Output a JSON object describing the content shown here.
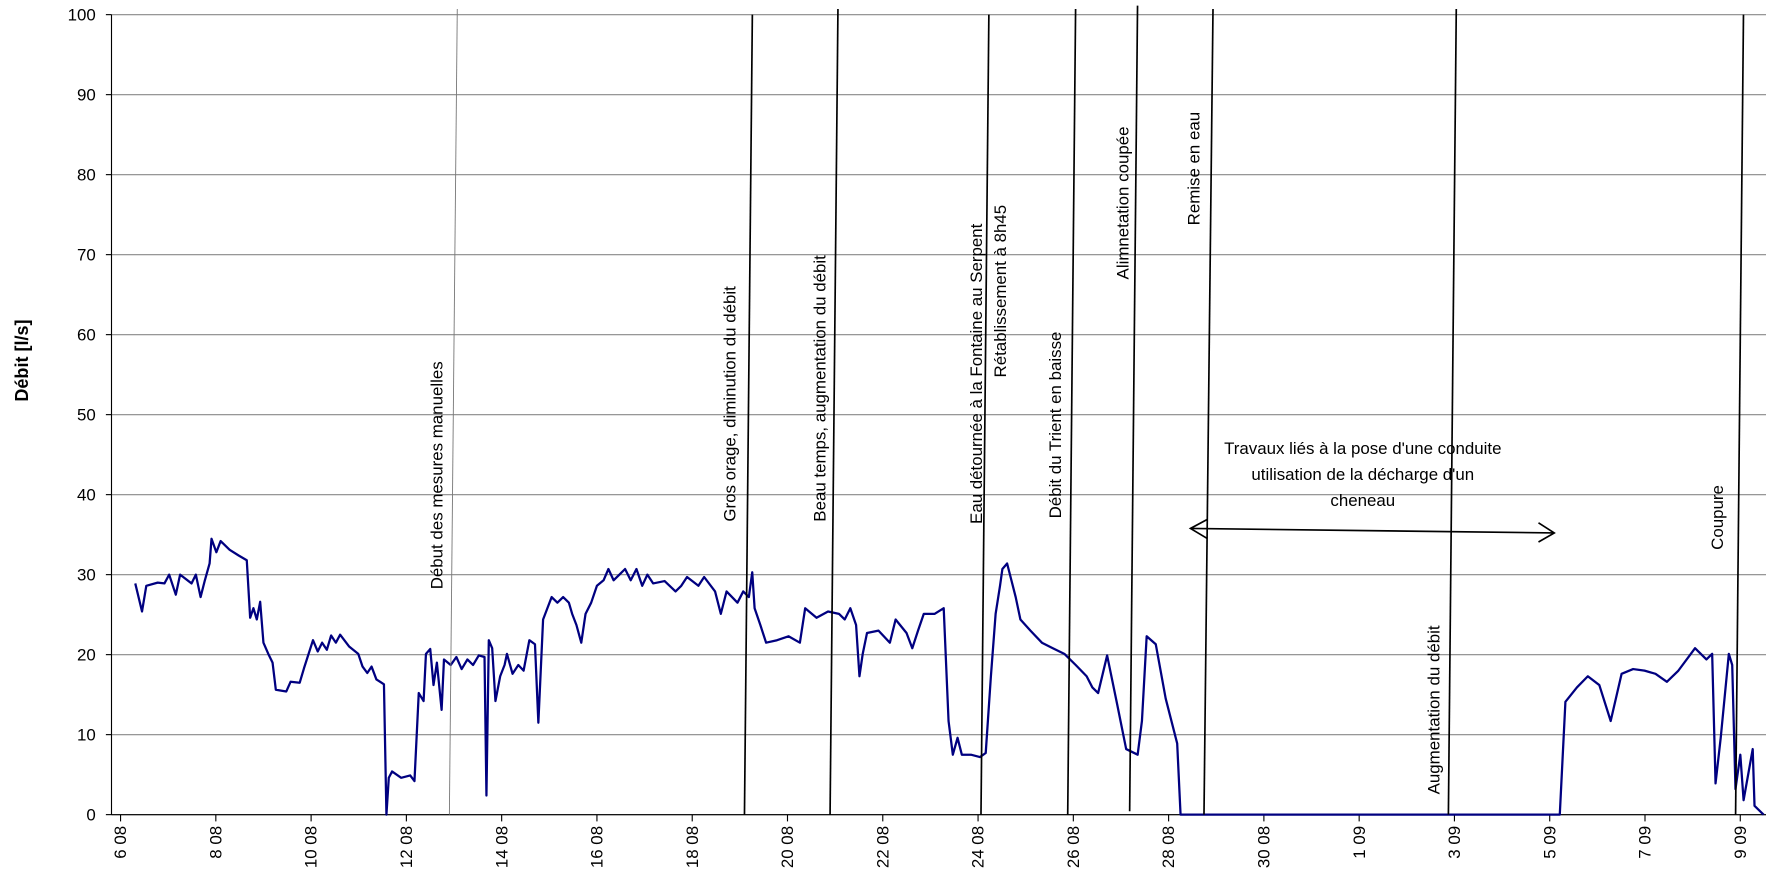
{
  "chart_data": {
    "type": "line",
    "y_label": "Débit [l/s]",
    "color": "#000080",
    "x": [
      6.31,
      6.45,
      6.54,
      6.78,
      6.92,
      7.02,
      7.16,
      7.25,
      7.49,
      7.58,
      7.68,
      7.77,
      7.87,
      7.91,
      8.01,
      8.1,
      8.29,
      8.48,
      8.65,
      8.72,
      8.79,
      8.86,
      8.93,
      9.0,
      9.1,
      9.19,
      9.26,
      9.48,
      9.57,
      9.76,
      9.85,
      10.04,
      10.14,
      10.23,
      10.33,
      10.42,
      10.52,
      10.61,
      10.8,
      10.99,
      11.08,
      11.18,
      11.27,
      11.37,
      11.53,
      11.58,
      11.63,
      11.7,
      11.89,
      12.08,
      12.17,
      12.26,
      12.36,
      12.41,
      12.5,
      12.57,
      12.64,
      12.74,
      12.79,
      12.93,
      13.05,
      13.16,
      13.28,
      13.4,
      13.52,
      13.64,
      13.68,
      13.73,
      13.8,
      13.87,
      13.97,
      14.06,
      14.11,
      14.23,
      14.35,
      14.46,
      14.58,
      14.7,
      14.77,
      14.87,
      14.96,
      15.05,
      15.17,
      15.29,
      15.41,
      15.48,
      15.57,
      15.67,
      15.76,
      15.88,
      16.0,
      16.14,
      16.24,
      16.35,
      16.47,
      16.59,
      16.71,
      16.83,
      16.95,
      17.06,
      17.18,
      17.42,
      17.65,
      17.77,
      17.89,
      18.13,
      18.25,
      18.48,
      18.6,
      18.72,
      18.95,
      19.07,
      19.19,
      19.26,
      19.31,
      19.43,
      19.55,
      19.78,
      20.02,
      20.26,
      20.37,
      20.61,
      20.85,
      21.08,
      21.2,
      21.32,
      21.44,
      21.51,
      21.58,
      21.67,
      21.91,
      22.15,
      22.27,
      22.5,
      22.62,
      22.74,
      22.86,
      23.09,
      23.28,
      23.38,
      23.47,
      23.57,
      23.66,
      23.85,
      24.04,
      24.16,
      24.27,
      24.37,
      24.46,
      24.51,
      24.61,
      24.7,
      24.79,
      24.89,
      25.1,
      25.34,
      25.57,
      25.81,
      26.05,
      26.28,
      26.4,
      26.52,
      26.71,
      26.92,
      27.11,
      27.35,
      27.44,
      27.54,
      27.73,
      27.94,
      28.18,
      28.25,
      36.21,
      36.33,
      36.57,
      36.8,
      37.04,
      37.28,
      37.51,
      37.75,
      37.99,
      38.22,
      38.46,
      38.7,
      39.05,
      39.29,
      39.41,
      39.48,
      39.59,
      39.76,
      39.83,
      39.9,
      40.0,
      40.07,
      40.26,
      40.3,
      40.49
    ],
    "values": [
      28.9,
      25.4,
      28.6,
      29.0,
      28.9,
      30.0,
      27.5,
      30.0,
      28.9,
      30.0,
      27.2,
      29.3,
      31.4,
      34.5,
      32.8,
      34.2,
      33.1,
      32.4,
      31.8,
      24.6,
      25.8,
      24.4,
      26.6,
      21.5,
      20.1,
      19.0,
      15.6,
      15.4,
      16.6,
      16.5,
      18.3,
      21.8,
      20.4,
      21.5,
      20.6,
      22.4,
      21.5,
      22.5,
      21.0,
      20.1,
      18.5,
      17.7,
      18.5,
      16.9,
      16.3,
      0,
      4.6,
      5.4,
      4.6,
      4.9,
      4.2,
      15.2,
      14.2,
      20.1,
      20.7,
      16.2,
      19.0,
      13.1,
      19.4,
      18.7,
      19.7,
      18.2,
      19.4,
      18.7,
      19.9,
      19.7,
      2.4,
      21.8,
      20.8,
      14.2,
      17.3,
      18.7,
      20.1,
      17.6,
      18.7,
      18.0,
      21.8,
      21.3,
      11.5,
      24.4,
      25.8,
      27.2,
      26.5,
      27.2,
      26.5,
      25.1,
      23.7,
      21.5,
      25.1,
      26.5,
      28.6,
      29.3,
      30.7,
      29.3,
      30.0,
      30.7,
      29.3,
      30.7,
      28.6,
      30.0,
      28.9,
      29.2,
      27.9,
      28.6,
      29.7,
      28.6,
      29.7,
      27.9,
      25.1,
      27.9,
      26.5,
      27.9,
      27.2,
      30.3,
      25.8,
      23.7,
      21.5,
      21.8,
      22.3,
      21.5,
      25.8,
      24.6,
      25.4,
      25.1,
      24.4,
      25.8,
      23.7,
      17.3,
      20.1,
      22.7,
      23.0,
      21.5,
      24.4,
      22.7,
      20.8,
      23.0,
      25.1,
      25.1,
      25.8,
      11.7,
      7.5,
      9.6,
      7.5,
      7.5,
      7.2,
      7.7,
      17.3,
      25.1,
      28.6,
      30.7,
      31.4,
      29.3,
      27.2,
      24.4,
      23.0,
      21.5,
      20.8,
      20.1,
      18.7,
      17.3,
      15.9,
      15.2,
      19.9,
      13.8,
      8.2,
      7.5,
      11.7,
      22.3,
      21.3,
      14.5,
      8.9,
      0,
      0,
      14.1,
      15.9,
      17.3,
      16.2,
      11.7,
      17.6,
      18.2,
      18.0,
      17.6,
      16.6,
      18.0,
      20.8,
      19.4,
      20.1,
      3.9,
      9.6,
      20.1,
      18.7,
      3.2,
      7.5,
      1.8,
      8.2,
      1.1,
      0
    ],
    "xlim": [
      5.81,
      40.54
    ],
    "xticks": [
      {
        "value": 6,
        "label": "6 08"
      },
      {
        "value": 8,
        "label": "8 08"
      },
      {
        "value": 10,
        "label": "10 08"
      },
      {
        "value": 12,
        "label": "12 08"
      },
      {
        "value": 14,
        "label": "14 08"
      },
      {
        "value": 16,
        "label": "16 08"
      },
      {
        "value": 18,
        "label": "18 08"
      },
      {
        "value": 20,
        "label": "20 08"
      },
      {
        "value": 22,
        "label": "22 08"
      },
      {
        "value": 24,
        "label": "24 08"
      },
      {
        "value": 26,
        "label": "26 08"
      },
      {
        "value": 28,
        "label": "28 08"
      },
      {
        "value": 30,
        "label": "30 08"
      },
      {
        "value": 32,
        "label": "1 09"
      },
      {
        "value": 34,
        "label": "3 09"
      },
      {
        "value": 36,
        "label": "5 09"
      },
      {
        "value": 38,
        "label": "7 09"
      },
      {
        "value": 40,
        "label": "9 09"
      }
    ],
    "ylim": [
      0,
      100
    ],
    "yticks": [
      0,
      10,
      20,
      30,
      40,
      50,
      60,
      70,
      80,
      90,
      100
    ],
    "grid": true,
    "annotations": [
      "Début des mesures manuelles",
      "Gros orage, diminution du débit",
      "Beau temps, augmentation du débit",
      "Eau détournée à la Fontaine au Serpent",
      "Rétablissement à 8h45",
      "Débit du Trient en baisse",
      "Alimnetation coupée",
      "Remise en eau",
      "Augmentation du débit",
      "Coupure"
    ],
    "note": [
      "Travaux liés à la pose d'une conduite",
      "utilisation de la décharge d'un",
      "cheneau"
    ]
  }
}
